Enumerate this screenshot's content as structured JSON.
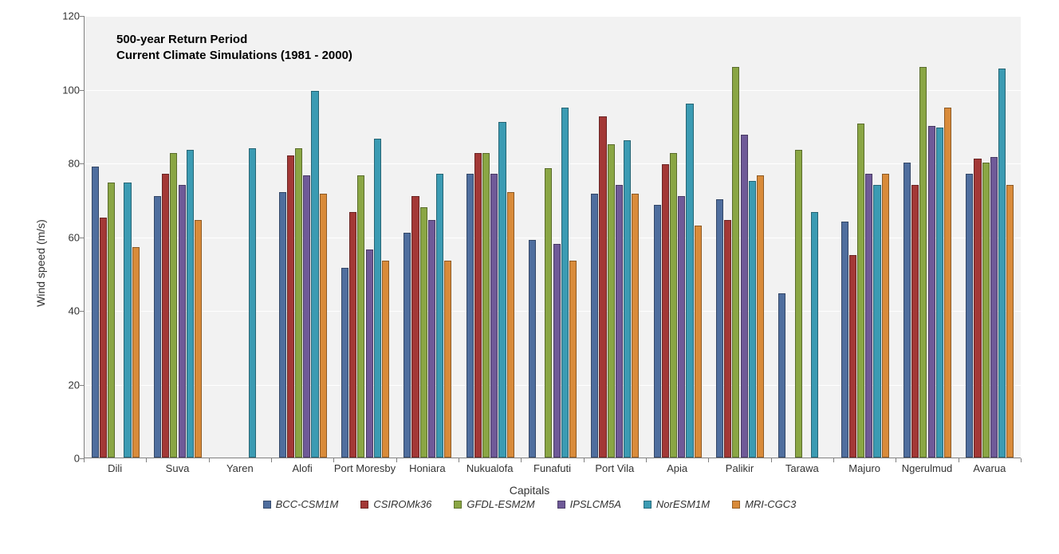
{
  "chart": {
    "type": "bar",
    "background_color": "#ffffff",
    "plot_background_color": "#f2f2f2",
    "grid_color": "#ffffff",
    "axis_color": "#808080",
    "annotation_line1": "500-year Return Period",
    "annotation_line2": "Current Climate Simulations (1981 - 2000)",
    "annotation_fontsize": 15,
    "annotation_fontweight": "bold",
    "y_axis": {
      "title": "Wind speed (m/s)",
      "min": 0,
      "max": 120,
      "tick_step": 20,
      "ticks": [
        0,
        20,
        40,
        60,
        80,
        100,
        120
      ],
      "label_fontsize": 13,
      "title_fontsize": 14
    },
    "x_axis": {
      "title": "Capitals",
      "label_fontsize": 13,
      "title_fontsize": 14
    },
    "categories": [
      "Dili",
      "Suva",
      "Yaren",
      "Alofi",
      "Port Moresby",
      "Honiara",
      "Nukualofa",
      "Funafuti",
      "Port Vila",
      "Apia",
      "Palikir",
      "Tarawa",
      "Majuro",
      "Ngerulmud",
      "Avarua"
    ],
    "series": [
      {
        "name": "BCC-CSM1M",
        "color": "#4f6e9e",
        "values": [
          79,
          71,
          null,
          72,
          51.5,
          61,
          77,
          59,
          71.5,
          68.5,
          70,
          44.5,
          64,
          80,
          77
        ]
      },
      {
        "name": "CSIROMk36",
        "color": "#a33836",
        "values": [
          65,
          77,
          null,
          82,
          66.5,
          71,
          82.5,
          null,
          92.5,
          79.5,
          64.5,
          null,
          55,
          74,
          81
        ]
      },
      {
        "name": "GFDL-ESM2M",
        "color": "#8aa644",
        "values": [
          74.5,
          82.5,
          null,
          84,
          76.5,
          68,
          82.5,
          78.5,
          85,
          82.5,
          106,
          83.5,
          90.5,
          106,
          80
        ]
      },
      {
        "name": "IPSLCM5A",
        "color": "#6f5a98",
        "values": [
          null,
          74,
          null,
          76.5,
          56.5,
          64.5,
          77,
          58,
          74,
          71,
          87.5,
          null,
          77,
          90,
          81.5
        ]
      },
      {
        "name": "NorESM1M",
        "color": "#3b9bb3",
        "values": [
          74.5,
          83.5,
          84,
          99.5,
          86.5,
          77,
          91,
          95,
          86,
          96,
          75,
          66.5,
          74,
          89.5,
          105.5
        ]
      },
      {
        "name": "MRI-CGC3",
        "color": "#d98b3a",
        "values": [
          57,
          64.5,
          null,
          71.5,
          53.5,
          53.5,
          72,
          53.5,
          71.5,
          63,
          76.5,
          null,
          77,
          95,
          74
        ]
      }
    ],
    "bar_group_width_ratio": 0.78,
    "legend_fontsize": 13,
    "legend_font_style": "italic"
  }
}
